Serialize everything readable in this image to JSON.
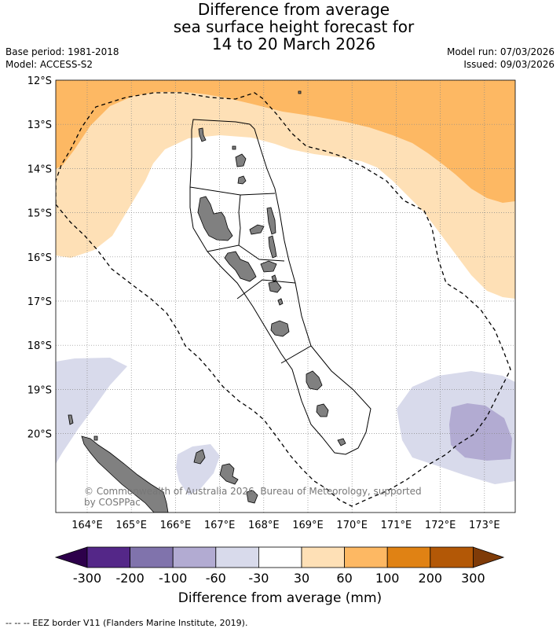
{
  "title_lines": [
    "Difference from average",
    "sea surface height forecast for",
    "14 to 20 March 2026"
  ],
  "base_period": "Base period: 1981-2018",
  "model": "Model: ACCESS-S2",
  "model_run": "Model run: 07/03/2026",
  "issued": "Issued: 09/03/2026",
  "lat_labels": [
    "12°S",
    "13°S",
    "14°S",
    "15°S",
    "16°S",
    "17°S",
    "18°S",
    "19°S",
    "20°S"
  ],
  "lon_labels": [
    "164°E",
    "165°E",
    "166°E",
    "167°E",
    "168°E",
    "169°E",
    "170°E",
    "171°E",
    "172°E",
    "173°E"
  ],
  "copyright_lines": [
    "© Commonwealth of Australia 2026, Bureau of Meteorology, supported",
    "by COSPPac"
  ],
  "colorbar": {
    "title": "Difference from average (mm)",
    "labels": [
      "-300",
      "-200",
      "-100",
      "-60",
      "-30",
      "30",
      "60",
      "100",
      "200",
      "300"
    ],
    "colors": [
      "#2d004b",
      "#542788",
      "#8073ac",
      "#b2abd2",
      "#d8daeb",
      "#ffffff",
      "#fee0b6",
      "#fdb863",
      "#e08214",
      "#b35806",
      "#7f3b08"
    ]
  },
  "footer": "--  --  -- EEZ border V11 (Flanders Marine Institute, 2019).",
  "colors": {
    "land": "#808080",
    "eez": "#000000"
  }
}
